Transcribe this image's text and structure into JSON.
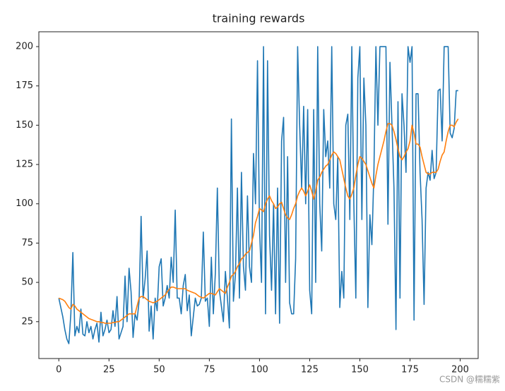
{
  "chart_data": {
    "type": "line",
    "title": "training rewards",
    "watermark": "CSDN @糯糯紫",
    "x": [
      0,
      1,
      2,
      3,
      4,
      5,
      6,
      7,
      8,
      9,
      10,
      11,
      12,
      13,
      14,
      15,
      16,
      17,
      18,
      19,
      20,
      21,
      22,
      23,
      24,
      25,
      26,
      27,
      28,
      29,
      30,
      31,
      32,
      33,
      34,
      35,
      36,
      37,
      38,
      39,
      40,
      41,
      42,
      43,
      44,
      45,
      46,
      47,
      48,
      49,
      50,
      51,
      52,
      53,
      54,
      55,
      56,
      57,
      58,
      59,
      60,
      61,
      62,
      63,
      64,
      65,
      66,
      67,
      68,
      69,
      70,
      71,
      72,
      73,
      74,
      75,
      76,
      77,
      78,
      79,
      80,
      81,
      82,
      83,
      84,
      85,
      86,
      87,
      88,
      89,
      90,
      91,
      92,
      93,
      94,
      95,
      96,
      97,
      98,
      99,
      100,
      101,
      102,
      103,
      104,
      105,
      106,
      107,
      108,
      109,
      110,
      111,
      112,
      113,
      114,
      115,
      116,
      117,
      118,
      119,
      120,
      121,
      122,
      123,
      124,
      125,
      126,
      127,
      128,
      129,
      130,
      131,
      132,
      133,
      134,
      135,
      136,
      137,
      138,
      139,
      140,
      141,
      142,
      143,
      144,
      145,
      146,
      147,
      148,
      149,
      150,
      151,
      152,
      153,
      154,
      155,
      156,
      157,
      158,
      159,
      160,
      161,
      162,
      163,
      164,
      165,
      166,
      167,
      168,
      169,
      170,
      171,
      172,
      173,
      174,
      175,
      176,
      177,
      178,
      179,
      180,
      181,
      182,
      183,
      184,
      185,
      186,
      187,
      188,
      189,
      190,
      191,
      192,
      193,
      194,
      195,
      196,
      197,
      198,
      199
    ],
    "series": [
      {
        "color": "#1f77b4",
        "values": [
          40,
          34,
          28,
          20,
          14,
          11,
          30,
          69,
          16,
          22,
          18,
          33,
          17,
          16,
          25,
          18,
          22,
          14,
          20,
          24,
          12,
          31,
          16,
          20,
          26,
          18,
          20,
          32,
          22,
          41,
          14,
          18,
          22,
          54,
          25,
          59,
          44,
          15,
          30,
          26,
          38,
          92,
          40,
          52,
          70,
          19,
          35,
          14,
          40,
          32,
          60,
          65,
          35,
          40,
          48,
          40,
          66,
          50,
          96,
          40,
          40,
          30,
          48,
          55,
          32,
          42,
          16,
          28,
          40,
          35,
          36,
          40,
          82,
          38,
          40,
          22,
          66,
          30,
          56,
          110,
          45,
          35,
          25,
          57,
          40,
          21,
          154,
          38,
          55,
          110,
          40,
          120,
          60,
          45,
          105,
          60,
          50,
          132,
          100,
          191,
          85,
          50,
          200,
          30,
          191,
          80,
          45,
          100,
          30,
          110,
          24,
          140,
          155,
          50,
          130,
          37,
          30,
          30,
          65,
          200,
          150,
          110,
          162,
          100,
          160,
          45,
          30,
          160,
          50,
          200,
          100,
          70,
          160,
          130,
          140,
          110,
          200,
          100,
          90,
          130,
          34,
          57,
          40,
          150,
          157,
          90,
          200,
          100,
          40,
          180,
          200,
          90,
          180,
          150,
          34,
          93,
          74,
          120,
          200,
          150,
          200,
          200,
          200,
          200,
          87,
          190,
          150,
          110,
          20,
          165,
          40,
          170,
          150,
          120,
          200,
          190,
          200,
          26,
          170,
          170,
          120,
          90,
          36,
          110,
          120,
          115,
          134,
          116,
          120,
          172,
          173,
          140,
          200,
          200,
          200,
          145,
          142,
          148,
          172,
          172
        ]
      },
      {
        "color": "#ff7f0e",
        "values": [
          40,
          39.5,
          39,
          38,
          36,
          34,
          33,
          36,
          35,
          33,
          32,
          31,
          30,
          29,
          28,
          27,
          26.5,
          26,
          25.5,
          25,
          25,
          24.5,
          24.5,
          24,
          24,
          24,
          24,
          24.5,
          24.5,
          25,
          25,
          26,
          27,
          28,
          29,
          30,
          30,
          30,
          30,
          35,
          40,
          41,
          41,
          40,
          39,
          38,
          37.5,
          37,
          37.5,
          38,
          39,
          40,
          41,
          42,
          44,
          45.5,
          47,
          47,
          46.5,
          46,
          46,
          46,
          46,
          46,
          45,
          44.5,
          44,
          43.5,
          43,
          42,
          41,
          40.5,
          40,
          41,
          42,
          43,
          43,
          42.5,
          42,
          44,
          46,
          45,
          44,
          43,
          47,
          50,
          54,
          55,
          57,
          60,
          62,
          65,
          66,
          68,
          69,
          70,
          75,
          80,
          88,
          92,
          97,
          96,
          95,
          100,
          103,
          105,
          102,
          100,
          97,
          98,
          100,
          101,
          97,
          93,
          91,
          90,
          93,
          97,
          100,
          105,
          108,
          110,
          108,
          105,
          108,
          112,
          108,
          103,
          108,
          115,
          117,
          120,
          122,
          124,
          125,
          128,
          131,
          133,
          132,
          130,
          128,
          122,
          116,
          110,
          105,
          103,
          106,
          110,
          118,
          125,
          130,
          129,
          127,
          125,
          121,
          117,
          113,
          110,
          118,
          125,
          130,
          135,
          140,
          146,
          151,
          151,
          150,
          146,
          141,
          135,
          130,
          128,
          130,
          133,
          135,
          140,
          150,
          145,
          138,
          138,
          136,
          130,
          125,
          120,
          119,
          119,
          120,
          120,
          120,
          122,
          127,
          131,
          133,
          140,
          146,
          150,
          150,
          149,
          152,
          154
        ]
      }
    ],
    "xlim": [
      -9.95,
      208.95
    ],
    "xticks": [
      0,
      25,
      50,
      75,
      100,
      125,
      150,
      175,
      200
    ],
    "ylim": [
      1.55,
      209.45
    ],
    "yticks": [
      25,
      50,
      75,
      100,
      125,
      150,
      175,
      200
    ]
  }
}
